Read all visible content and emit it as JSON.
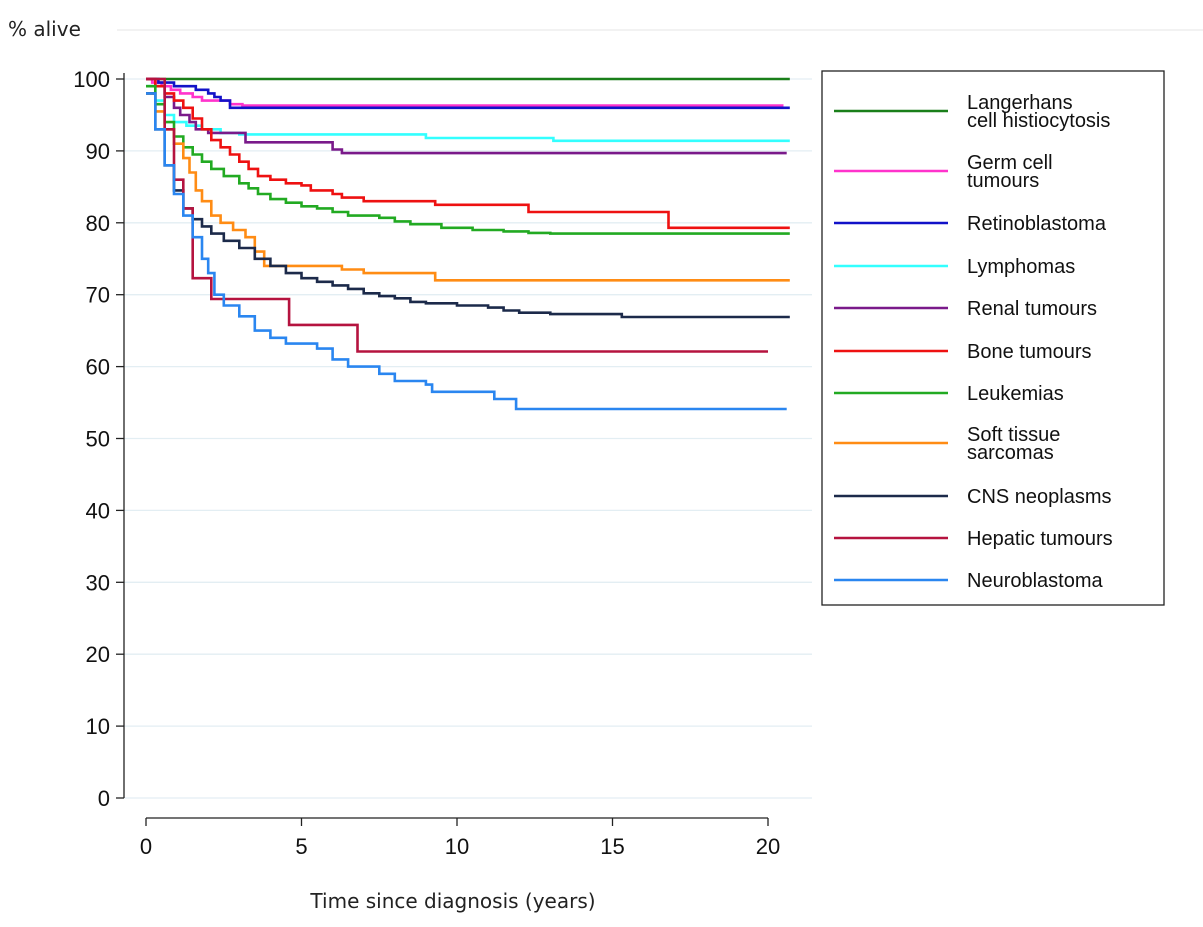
{
  "chart_data": {
    "type": "line",
    "ylabel": "% alive",
    "xlabel": "Time since diagnosis (years)",
    "xlim": [
      0,
      21
    ],
    "ylim": [
      0,
      100
    ],
    "x_ticks": [
      "0",
      "5",
      "10",
      "15",
      "20"
    ],
    "y_ticks": [
      "0",
      "10",
      "20",
      "30",
      "40",
      "50",
      "60",
      "70",
      "80",
      "90",
      "100"
    ],
    "grid": "horizontal",
    "legend_position": "right",
    "series": [
      {
        "name": "Langerhans\ncell histiocytosis",
        "color": "#1a7f1a",
        "points": [
          [
            0,
            100
          ],
          [
            20.7,
            100
          ]
        ]
      },
      {
        "name": "Germ cell\ntumours",
        "color": "#ff33cc",
        "points": [
          [
            0,
            100
          ],
          [
            0.2,
            99.5
          ],
          [
            0.5,
            99
          ],
          [
            0.8,
            98.5
          ],
          [
            1.1,
            98
          ],
          [
            1.5,
            97.5
          ],
          [
            1.8,
            97
          ],
          [
            2.6,
            97
          ],
          [
            2.7,
            96.5
          ],
          [
            3.0,
            96.5
          ],
          [
            3.1,
            96.3
          ],
          [
            20.5,
            96.3
          ]
        ]
      },
      {
        "name": "Retinoblastoma",
        "color": "#1212c8",
        "points": [
          [
            0,
            100
          ],
          [
            0.4,
            99.5
          ],
          [
            0.9,
            99
          ],
          [
            1.6,
            98.5
          ],
          [
            2.0,
            98
          ],
          [
            2.2,
            97.5
          ],
          [
            2.4,
            97
          ],
          [
            2.7,
            96
          ],
          [
            20.7,
            96
          ]
        ]
      },
      {
        "name": "Lymphomas",
        "color": "#33ffff",
        "points": [
          [
            0,
            99
          ],
          [
            0.3,
            97
          ],
          [
            0.6,
            95
          ],
          [
            0.9,
            94
          ],
          [
            1.3,
            93.5
          ],
          [
            1.8,
            93
          ],
          [
            2.4,
            92.5
          ],
          [
            3.0,
            92.3
          ],
          [
            8.8,
            92.3
          ],
          [
            9.0,
            91.8
          ],
          [
            13.0,
            91.8
          ],
          [
            13.1,
            91.4
          ],
          [
            20.7,
            91.4
          ]
        ]
      },
      {
        "name": "Renal tumours",
        "color": "#7a1a8a",
        "points": [
          [
            0,
            100
          ],
          [
            0.3,
            99
          ],
          [
            0.6,
            97.5
          ],
          [
            0.9,
            96
          ],
          [
            1.1,
            95
          ],
          [
            1.4,
            94
          ],
          [
            1.6,
            93
          ],
          [
            2.0,
            92.5
          ],
          [
            3.0,
            92.5
          ],
          [
            3.2,
            91.2
          ],
          [
            5.8,
            91.2
          ],
          [
            6.0,
            90.2
          ],
          [
            6.3,
            89.7
          ],
          [
            20.6,
            89.7
          ]
        ]
      },
      {
        "name": "Bone tumours",
        "color": "#ee1111",
        "points": [
          [
            0,
            100
          ],
          [
            0.3,
            99
          ],
          [
            0.6,
            98
          ],
          [
            0.9,
            97
          ],
          [
            1.2,
            96
          ],
          [
            1.5,
            94.5
          ],
          [
            1.8,
            93
          ],
          [
            2.1,
            91.5
          ],
          [
            2.4,
            90.5
          ],
          [
            2.7,
            89.5
          ],
          [
            3.0,
            88.5
          ],
          [
            3.3,
            87.5
          ],
          [
            3.6,
            86.5
          ],
          [
            4.0,
            86
          ],
          [
            4.5,
            85.5
          ],
          [
            5.0,
            85.2
          ],
          [
            5.3,
            84.5
          ],
          [
            6.0,
            84
          ],
          [
            6.3,
            83.5
          ],
          [
            7.0,
            83
          ],
          [
            8.0,
            83
          ],
          [
            9.0,
            83
          ],
          [
            9.3,
            82.5
          ],
          [
            12.0,
            82.5
          ],
          [
            12.3,
            81.5
          ],
          [
            16.7,
            81.5
          ],
          [
            16.8,
            79.3
          ],
          [
            20.7,
            79.3
          ]
        ]
      },
      {
        "name": "Leukemias",
        "color": "#22aa22",
        "points": [
          [
            0,
            99
          ],
          [
            0.3,
            96.5
          ],
          [
            0.6,
            94
          ],
          [
            0.9,
            92
          ],
          [
            1.2,
            90.5
          ],
          [
            1.5,
            89.5
          ],
          [
            1.8,
            88.5
          ],
          [
            2.1,
            87.5
          ],
          [
            2.5,
            86.5
          ],
          [
            3.0,
            85.5
          ],
          [
            3.3,
            84.8
          ],
          [
            3.6,
            84
          ],
          [
            4.0,
            83.3
          ],
          [
            4.5,
            82.8
          ],
          [
            5.0,
            82.3
          ],
          [
            5.5,
            82
          ],
          [
            6.0,
            81.5
          ],
          [
            6.5,
            81
          ],
          [
            7.5,
            80.7
          ],
          [
            8.0,
            80.2
          ],
          [
            8.5,
            79.8
          ],
          [
            9.5,
            79.3
          ],
          [
            10.5,
            79
          ],
          [
            11.5,
            78.8
          ],
          [
            12.3,
            78.6
          ],
          [
            13.0,
            78.5
          ],
          [
            20.7,
            78.5
          ]
        ]
      },
      {
        "name": "Soft tissue\nsarcomas",
        "color": "#ff8c14",
        "points": [
          [
            0,
            98
          ],
          [
            0.3,
            95.5
          ],
          [
            0.6,
            93
          ],
          [
            0.9,
            91
          ],
          [
            1.2,
            89
          ],
          [
            1.4,
            87
          ],
          [
            1.6,
            84.5
          ],
          [
            1.8,
            83
          ],
          [
            2.1,
            81
          ],
          [
            2.4,
            80
          ],
          [
            2.8,
            79
          ],
          [
            3.2,
            78
          ],
          [
            3.5,
            76
          ],
          [
            3.8,
            74
          ],
          [
            6.0,
            74
          ],
          [
            6.3,
            73.5
          ],
          [
            7.0,
            73
          ],
          [
            9.2,
            73
          ],
          [
            9.3,
            72
          ],
          [
            20.7,
            72
          ]
        ]
      },
      {
        "name": "CNS neoplasms",
        "color": "#1c2a4a",
        "points": [
          [
            0,
            98
          ],
          [
            0.3,
            93
          ],
          [
            0.6,
            88
          ],
          [
            0.9,
            84.5
          ],
          [
            1.2,
            82
          ],
          [
            1.5,
            80.5
          ],
          [
            1.8,
            79.5
          ],
          [
            2.1,
            78.5
          ],
          [
            2.5,
            77.5
          ],
          [
            3.0,
            76.5
          ],
          [
            3.5,
            75
          ],
          [
            4.0,
            74
          ],
          [
            4.5,
            73
          ],
          [
            5.0,
            72.3
          ],
          [
            5.5,
            71.8
          ],
          [
            6.0,
            71.3
          ],
          [
            6.5,
            70.8
          ],
          [
            7.0,
            70.2
          ],
          [
            7.5,
            69.8
          ],
          [
            8.0,
            69.5
          ],
          [
            8.5,
            69
          ],
          [
            9.0,
            68.8
          ],
          [
            10.0,
            68.5
          ],
          [
            11.0,
            68.2
          ],
          [
            11.5,
            67.8
          ],
          [
            12.0,
            67.5
          ],
          [
            13.0,
            67.3
          ],
          [
            15.0,
            67.3
          ],
          [
            15.3,
            66.9
          ],
          [
            20.7,
            66.9
          ]
        ]
      },
      {
        "name": "Hepatic tumours",
        "color": "#b5133f",
        "points": [
          [
            0,
            100
          ],
          [
            0.6,
            93
          ],
          [
            0.9,
            86
          ],
          [
            1.2,
            82
          ],
          [
            1.4,
            82
          ],
          [
            1.5,
            72.3
          ],
          [
            2.0,
            72.3
          ],
          [
            2.1,
            69.4
          ],
          [
            4.5,
            69.4
          ],
          [
            4.6,
            65.8
          ],
          [
            6.7,
            65.8
          ],
          [
            6.8,
            62.1
          ],
          [
            20.0,
            62.1
          ]
        ]
      },
      {
        "name": "Neuroblastoma",
        "color": "#2a86f0",
        "points": [
          [
            0,
            98
          ],
          [
            0.3,
            93
          ],
          [
            0.6,
            88
          ],
          [
            0.9,
            84
          ],
          [
            1.2,
            81
          ],
          [
            1.5,
            78
          ],
          [
            1.8,
            75
          ],
          [
            2.0,
            73
          ],
          [
            2.2,
            70
          ],
          [
            2.5,
            68.5
          ],
          [
            3.0,
            67
          ],
          [
            3.5,
            65
          ],
          [
            4.0,
            64
          ],
          [
            4.5,
            63.2
          ],
          [
            5.5,
            62.5
          ],
          [
            6.0,
            61
          ],
          [
            6.5,
            60
          ],
          [
            7.5,
            59
          ],
          [
            8.0,
            58
          ],
          [
            9.0,
            57.5
          ],
          [
            9.2,
            56.5
          ],
          [
            11.0,
            56.5
          ],
          [
            11.2,
            55.5
          ],
          [
            11.8,
            55.5
          ],
          [
            11.9,
            54.1
          ],
          [
            20.6,
            54.1
          ]
        ]
      }
    ]
  }
}
